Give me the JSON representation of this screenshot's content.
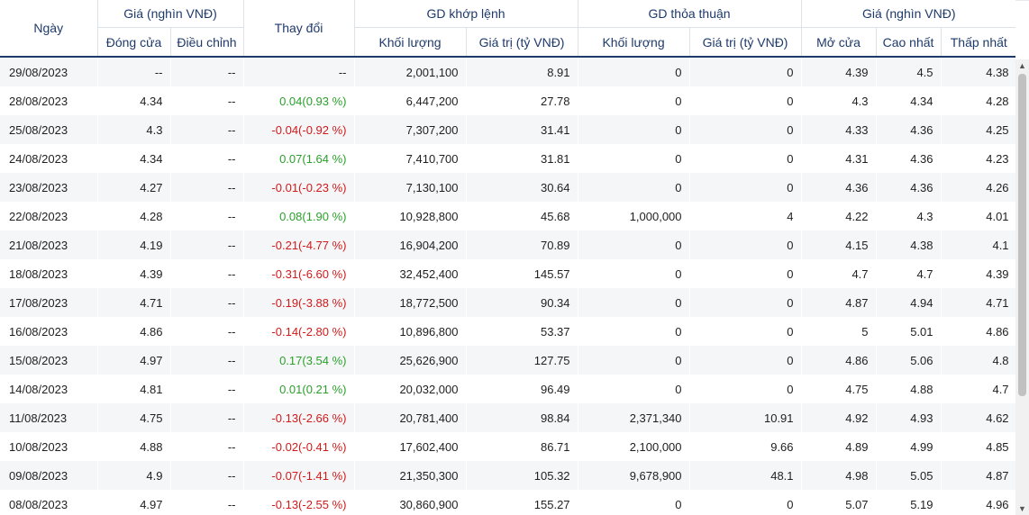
{
  "headers": {
    "date": "Ngày",
    "price_group": "Giá (nghìn VNĐ)",
    "close": "Đóng cửa",
    "adjusted": "Điều chỉnh",
    "change": "Thay đổi",
    "matched_group": "GD khớp lệnh",
    "matched_volume": "Khối lượng",
    "matched_value": "Giá trị (tỷ VNĐ)",
    "put_through_group": "GD thỏa thuận",
    "put_through_volume": "Khối lượng",
    "put_through_value": "Giá trị (tỷ VNĐ)",
    "price_group_2": "Giá (nghìn VNĐ)",
    "open": "Mở cửa",
    "high": "Cao nhất",
    "low": "Thấp nhất"
  },
  "colors": {
    "up": "#2aa12a",
    "down": "#d11a1a",
    "header_text": "#1e3a6b"
  },
  "rows": [
    {
      "date": "29/08/2023",
      "close": "--",
      "adjusted": "--",
      "change": "--",
      "trend": "flat",
      "volume": "2,001,100",
      "value": "8.91",
      "pt_volume": "0",
      "pt_value": "0",
      "open": "4.39",
      "high": "4.5",
      "low": "4.38"
    },
    {
      "date": "28/08/2023",
      "close": "4.34",
      "adjusted": "--",
      "change": "0.04(0.93 %)",
      "trend": "up",
      "volume": "6,447,200",
      "value": "27.78",
      "pt_volume": "0",
      "pt_value": "0",
      "open": "4.3",
      "high": "4.34",
      "low": "4.28"
    },
    {
      "date": "25/08/2023",
      "close": "4.3",
      "adjusted": "--",
      "change": "-0.04(-0.92 %)",
      "trend": "down",
      "volume": "7,307,200",
      "value": "31.41",
      "pt_volume": "0",
      "pt_value": "0",
      "open": "4.33",
      "high": "4.36",
      "low": "4.25"
    },
    {
      "date": "24/08/2023",
      "close": "4.34",
      "adjusted": "--",
      "change": "0.07(1.64 %)",
      "trend": "up",
      "volume": "7,410,700",
      "value": "31.81",
      "pt_volume": "0",
      "pt_value": "0",
      "open": "4.31",
      "high": "4.36",
      "low": "4.23"
    },
    {
      "date": "23/08/2023",
      "close": "4.27",
      "adjusted": "--",
      "change": "-0.01(-0.23 %)",
      "trend": "down",
      "volume": "7,130,100",
      "value": "30.64",
      "pt_volume": "0",
      "pt_value": "0",
      "open": "4.36",
      "high": "4.36",
      "low": "4.26"
    },
    {
      "date": "22/08/2023",
      "close": "4.28",
      "adjusted": "--",
      "change": "0.08(1.90 %)",
      "trend": "up",
      "volume": "10,928,800",
      "value": "45.68",
      "pt_volume": "1,000,000",
      "pt_value": "4",
      "open": "4.22",
      "high": "4.3",
      "low": "4.01"
    },
    {
      "date": "21/08/2023",
      "close": "4.19",
      "adjusted": "--",
      "change": "-0.21(-4.77 %)",
      "trend": "down",
      "volume": "16,904,200",
      "value": "70.89",
      "pt_volume": "0",
      "pt_value": "0",
      "open": "4.15",
      "high": "4.38",
      "low": "4.1"
    },
    {
      "date": "18/08/2023",
      "close": "4.39",
      "adjusted": "--",
      "change": "-0.31(-6.60 %)",
      "trend": "down",
      "volume": "32,452,400",
      "value": "145.57",
      "pt_volume": "0",
      "pt_value": "0",
      "open": "4.7",
      "high": "4.7",
      "low": "4.39"
    },
    {
      "date": "17/08/2023",
      "close": "4.71",
      "adjusted": "--",
      "change": "-0.19(-3.88 %)",
      "trend": "down",
      "volume": "18,772,500",
      "value": "90.34",
      "pt_volume": "0",
      "pt_value": "0",
      "open": "4.87",
      "high": "4.94",
      "low": "4.71"
    },
    {
      "date": "16/08/2023",
      "close": "4.86",
      "adjusted": "--",
      "change": "-0.14(-2.80 %)",
      "trend": "down",
      "volume": "10,896,800",
      "value": "53.37",
      "pt_volume": "0",
      "pt_value": "0",
      "open": "5",
      "high": "5.01",
      "low": "4.86"
    },
    {
      "date": "15/08/2023",
      "close": "4.97",
      "adjusted": "--",
      "change": "0.17(3.54 %)",
      "trend": "up",
      "volume": "25,626,900",
      "value": "127.75",
      "pt_volume": "0",
      "pt_value": "0",
      "open": "4.86",
      "high": "5.06",
      "low": "4.8"
    },
    {
      "date": "14/08/2023",
      "close": "4.81",
      "adjusted": "--",
      "change": "0.01(0.21 %)",
      "trend": "up",
      "volume": "20,032,000",
      "value": "96.49",
      "pt_volume": "0",
      "pt_value": "0",
      "open": "4.75",
      "high": "4.88",
      "low": "4.7"
    },
    {
      "date": "11/08/2023",
      "close": "4.75",
      "adjusted": "--",
      "change": "-0.13(-2.66 %)",
      "trend": "down",
      "volume": "20,781,400",
      "value": "98.84",
      "pt_volume": "2,371,340",
      "pt_value": "10.91",
      "open": "4.92",
      "high": "4.93",
      "low": "4.62"
    },
    {
      "date": "10/08/2023",
      "close": "4.88",
      "adjusted": "--",
      "change": "-0.02(-0.41 %)",
      "trend": "down",
      "volume": "17,602,400",
      "value": "86.71",
      "pt_volume": "2,100,000",
      "pt_value": "9.66",
      "open": "4.89",
      "high": "4.99",
      "low": "4.85"
    },
    {
      "date": "09/08/2023",
      "close": "4.9",
      "adjusted": "--",
      "change": "-0.07(-1.41 %)",
      "trend": "down",
      "volume": "21,350,300",
      "value": "105.32",
      "pt_volume": "9,678,900",
      "pt_value": "48.1",
      "open": "4.98",
      "high": "5.05",
      "low": "4.87"
    },
    {
      "date": "08/08/2023",
      "close": "4.97",
      "adjusted": "--",
      "change": "-0.13(-2.55 %)",
      "trend": "down",
      "volume": "30,860,900",
      "value": "155.27",
      "pt_volume": "0",
      "pt_value": "0",
      "open": "5.07",
      "high": "5.19",
      "low": "4.96"
    }
  ],
  "scrollbar": {
    "up_icon": "triangle-up-icon",
    "down_icon": "triangle-down-icon"
  }
}
